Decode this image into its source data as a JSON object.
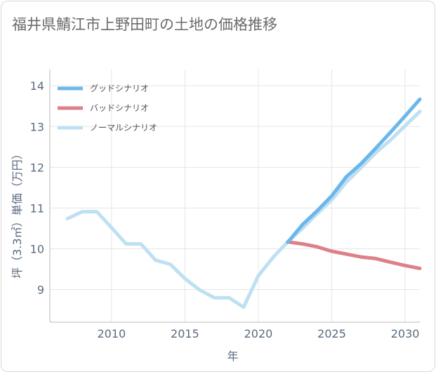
{
  "page": {
    "title": "福井県鯖江市上野田町の土地の価格推移"
  },
  "chart_data": {
    "type": "line",
    "title": "福井県鯖江市上野田町の土地の価格推移",
    "xlabel": "年",
    "ylabel": "坪（3.3㎡）単価（万円）",
    "xlim": [
      2005.8,
      2031
    ],
    "ylim": [
      8.2,
      14.4
    ],
    "xticks": [
      2010,
      2015,
      2020,
      2025,
      2030
    ],
    "yticks": [
      9,
      10,
      11,
      12,
      13,
      14
    ],
    "grid": true,
    "legend_position": "top-left",
    "series": [
      {
        "name": "グッドシナリオ",
        "color": "#6cb7ea",
        "x": [
          2022,
          2023,
          2024,
          2025,
          2026,
          2027,
          2028,
          2029,
          2030,
          2031
        ],
        "values": [
          10.16,
          10.59,
          10.93,
          11.3,
          11.77,
          12.09,
          12.47,
          12.86,
          13.26,
          13.67
        ]
      },
      {
        "name": "バッドシナリオ",
        "color": "#dd8088",
        "x": [
          2022,
          2023,
          2024,
          2025,
          2026,
          2027,
          2028,
          2029,
          2030,
          2031
        ],
        "values": [
          10.17,
          10.12,
          10.05,
          9.94,
          9.87,
          9.8,
          9.76,
          9.67,
          9.59,
          9.52
        ]
      },
      {
        "name": "ノーマルシナリオ",
        "color": "#bfe0f2",
        "x": [
          2007,
          2008,
          2009,
          2010,
          2011,
          2012,
          2013,
          2014,
          2015,
          2016,
          2017,
          2018,
          2019,
          2020,
          2021,
          2022,
          2023,
          2024,
          2025,
          2026,
          2027,
          2028,
          2029,
          2030,
          2031
        ],
        "values": [
          10.74,
          10.91,
          10.91,
          10.52,
          10.12,
          10.12,
          9.72,
          9.62,
          9.27,
          8.99,
          8.8,
          8.8,
          8.57,
          9.34,
          9.79,
          10.17,
          10.5,
          10.86,
          11.2,
          11.64,
          11.99,
          12.36,
          12.67,
          13.02,
          13.37
        ]
      }
    ]
  }
}
